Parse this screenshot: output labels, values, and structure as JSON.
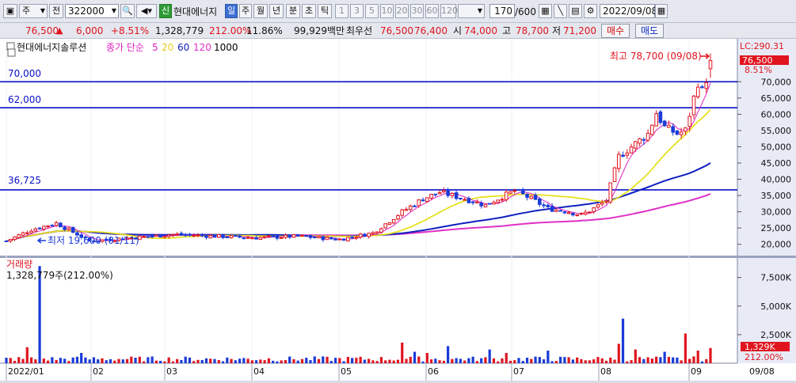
{
  "toolbar": {
    "type_select": "주",
    "prefix_btn": "전",
    "code_value": "322000",
    "market_badge": "신",
    "stock_name": "현대에너지",
    "period_tabs": [
      "일",
      "주",
      "월",
      "년",
      "분",
      "초",
      "틱"
    ],
    "active_period": "일",
    "interval_buttons": [
      "1",
      "3",
      "5",
      "10",
      "20",
      "30",
      "60",
      "120"
    ],
    "count_display": "170",
    "count_total": "/600",
    "date_value": "2022/09/08"
  },
  "quote_bar": {
    "price": "76,500",
    "change_arrow": "▲",
    "change": "6,000",
    "change_pct": "+8.51%",
    "volume": "1,328,779",
    "volume_ratio": "212.00%",
    "turnover": "11.86%",
    "amount": "99,929백만",
    "best_ask_label": "최우선",
    "best_ask": "76,500",
    "best_bid": "76,400",
    "open_label": "시",
    "open": "74,000",
    "high_label": "고",
    "high": "78,700",
    "low_label": "저",
    "low": "71,200",
    "buy_button": "매수",
    "sell_button": "매도"
  },
  "legend": {
    "stock": "현대에너지솔루션",
    "ma_label": "종가 단순",
    "ma": [
      {
        "name": "5",
        "color": "#e020c0"
      },
      {
        "name": "20",
        "color": "#e8d020"
      },
      {
        "name": "60",
        "color": "#1020c0"
      },
      {
        "name": "120",
        "color": "#e030c8"
      },
      {
        "name": "1000",
        "color": "#000000"
      }
    ]
  },
  "annotations": {
    "high": "최고 78,700 (09/08)",
    "low": "최저 19,600 (01/11)",
    "hline_labels": [
      "70,000",
      "62,000",
      "36,725"
    ],
    "price_tag": "76,500",
    "price_pct": "8.51%",
    "lc_label": "LC:290.31",
    "volume_label": "거래량",
    "volume_value": "1,328,779주(212.00%)",
    "volume_tag": "1,329K",
    "volume_pct": "212.00%"
  },
  "y_price_ticks": [
    "70,000",
    "65,000",
    "60,000",
    "55,000",
    "50,000",
    "45,000",
    "40,000",
    "35,000",
    "30,000",
    "25,000",
    "20,000"
  ],
  "y_volume_ticks": [
    "7,500K",
    "5,000K",
    "2,500K"
  ],
  "x_ticks": [
    "2022/01",
    "02",
    "03",
    "04",
    "05",
    "06",
    "07",
    "08",
    "09"
  ],
  "x_end_label": "09/08",
  "colors": {
    "up": "#e0141e",
    "down": "#1a3bd8",
    "hline": "#0a10c8",
    "ma5": "#e020c0",
    "ma20": "#e8e020",
    "ma60": "#1020c0",
    "ma120": "#e030c8"
  },
  "chart_data": {
    "type": "candlestick",
    "price_ylim": [
      17000,
      82000
    ],
    "volume_ylim": [
      0,
      9000000
    ],
    "horizontal_lines": [
      70000,
      62000,
      36725
    ],
    "months": [
      "2022/01",
      "02",
      "03",
      "04",
      "05",
      "06",
      "07",
      "08",
      "09"
    ],
    "monthly_close_anchor": [
      {
        "month": "2022/01",
        "close": 21000
      },
      {
        "month": "02",
        "close": 22000
      },
      {
        "month": "03",
        "close": 22500
      },
      {
        "month": "04",
        "close": 22000
      },
      {
        "month": "05",
        "close": 22000
      },
      {
        "month": "06",
        "close": 36000
      },
      {
        "month": "07",
        "close": 30000
      },
      {
        "month": "08",
        "close": 55000
      },
      {
        "month": "09",
        "close": 76500
      }
    ],
    "ma60_end": 45000,
    "ma120_end": 35500,
    "ma20_end": 61500,
    "last": {
      "open": 74000,
      "high": 78700,
      "low": 71200,
      "close": 76500,
      "volume": 1328779
    },
    "all_time_high": {
      "value": 78700,
      "date": "09/08"
    },
    "all_time_low": {
      "value": 19600,
      "date": "01/11"
    }
  }
}
